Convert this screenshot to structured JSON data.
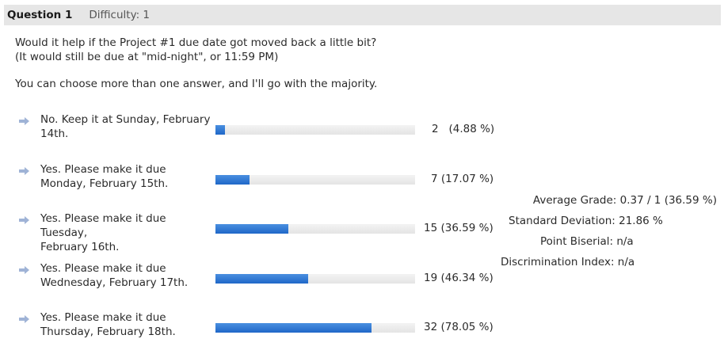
{
  "question": {
    "number_label": "Question 1",
    "difficulty_label": "Difficulty: 1",
    "text_line1": "Would it help if the Project #1 due date got moved back a little bit?",
    "text_line2": "(It would still be due at \"mid-night\", or 11:59 PM)",
    "note": "You can choose more than one answer, and I'll go with the majority."
  },
  "options": [
    {
      "line1": "No. Keep it at Sunday, February",
      "line2": "14th.",
      "count_label": "2   (4.88 %)",
      "percent": 4.88,
      "icon": "arrow-right-icon"
    },
    {
      "line1": "Yes. Please make it due",
      "line2": "Monday, February 15th.",
      "count_label": "7 (17.07 %)",
      "percent": 17.07,
      "icon": "arrow-right-icon"
    },
    {
      "line1": "Yes. Please make it due Tuesday,",
      "line2": "February 16th.",
      "count_label": "15 (36.59 %)",
      "percent": 36.59,
      "icon": "arrow-right-icon"
    },
    {
      "line1": "Yes. Please make it due",
      "line2": "Wednesday, February 17th.",
      "count_label": "19 (46.34 %)",
      "percent": 46.34,
      "icon": "arrow-right-icon"
    },
    {
      "line1": "Yes. Please make it due",
      "line2": "Thursday, February 18th.",
      "count_label": "32 (78.05 %)",
      "percent": 78.05,
      "icon": "arrow-right-icon"
    }
  ],
  "stats": {
    "average_grade": "Average Grade: 0.37 / 1 (36.59 %)",
    "standard_deviation": "Standard Deviation: 21.86 %",
    "point_biserial": "Point Biserial: n/a",
    "discrimination_index": "Discrimination Index: n/a"
  },
  "colors": {
    "bar_fill": "#2a72d4",
    "bar_track": "#e8e8e8",
    "header_bg": "#e6e6e6",
    "arrow": "#9fb3d6"
  }
}
